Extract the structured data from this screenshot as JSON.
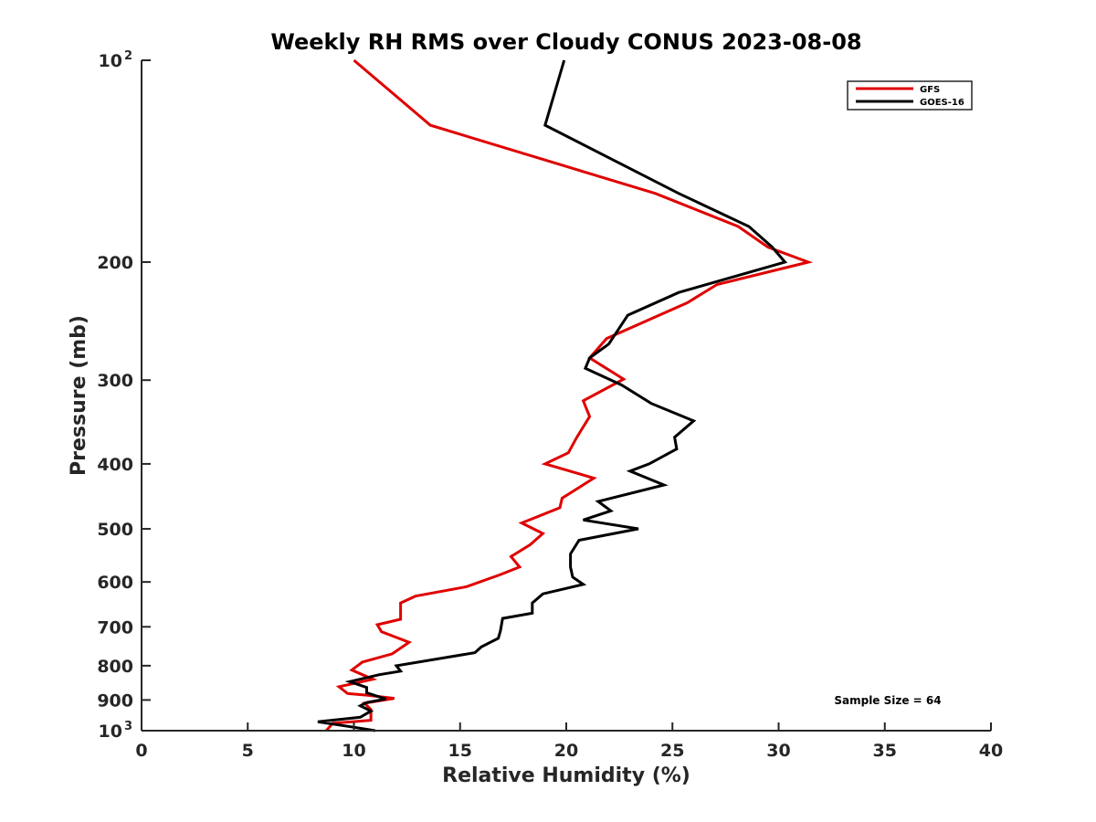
{
  "chart_data": {
    "type": "line",
    "title": "Weekly RH RMS over Cloudy CONUS 2023-08-08",
    "xlabel": "Relative Humidity (%)",
    "ylabel": "Pressure (mb)",
    "xlim": [
      0,
      40
    ],
    "ylim": [
      100,
      1000
    ],
    "y_scale": "log",
    "y_reversed": true,
    "x_ticks": [
      0,
      5,
      10,
      15,
      20,
      25,
      30,
      35,
      40
    ],
    "x_tick_labels": [
      "0",
      "5",
      "10",
      "15",
      "20",
      "25",
      "30",
      "35",
      "40"
    ],
    "y_ticks": [
      {
        "value": 100,
        "label": "10",
        "exp": "2"
      },
      {
        "value": 200,
        "label": "200",
        "exp": ""
      },
      {
        "value": 300,
        "label": "300",
        "exp": ""
      },
      {
        "value": 400,
        "label": "400",
        "exp": ""
      },
      {
        "value": 500,
        "label": "500",
        "exp": ""
      },
      {
        "value": 600,
        "label": "600",
        "exp": ""
      },
      {
        "value": 700,
        "label": "700",
        "exp": ""
      },
      {
        "value": 800,
        "label": "800",
        "exp": ""
      },
      {
        "value": 900,
        "label": "900",
        "exp": ""
      },
      {
        "value": 1000,
        "label": "10",
        "exp": "3"
      }
    ],
    "grid": false,
    "legend_position": "top-right",
    "annotation": "Sample Size = 64",
    "series": [
      {
        "name": "GFS",
        "color": "#e00000",
        "points": [
          [
            10.0,
            100
          ],
          [
            13.6,
            125
          ],
          [
            24.2,
            158
          ],
          [
            28.1,
            177
          ],
          [
            29.5,
            190
          ],
          [
            31.4,
            200
          ],
          [
            27.1,
            216
          ],
          [
            25.7,
            230
          ],
          [
            21.9,
            260
          ],
          [
            21.1,
            278
          ],
          [
            22.7,
            299
          ],
          [
            20.8,
            322
          ],
          [
            21.1,
            340
          ],
          [
            20.5,
            365
          ],
          [
            20.1,
            385
          ],
          [
            19.0,
            400
          ],
          [
            21.3,
            420
          ],
          [
            19.8,
            450
          ],
          [
            19.7,
            465
          ],
          [
            17.9,
            490
          ],
          [
            18.9,
            508
          ],
          [
            18.3,
            528
          ],
          [
            17.4,
            550
          ],
          [
            17.8,
            570
          ],
          [
            16.9,
            585
          ],
          [
            15.3,
            610
          ],
          [
            12.9,
            630
          ],
          [
            12.2,
            645
          ],
          [
            12.2,
            682
          ],
          [
            11.1,
            695
          ],
          [
            11.3,
            712
          ],
          [
            12.6,
            738
          ],
          [
            11.8,
            768
          ],
          [
            10.4,
            790
          ],
          [
            9.9,
            812
          ],
          [
            10.9,
            838
          ],
          [
            9.3,
            860
          ],
          [
            9.7,
            880
          ],
          [
            10.6,
            885
          ],
          [
            11.9,
            895
          ],
          [
            10.5,
            910
          ],
          [
            10.8,
            930
          ],
          [
            10.8,
            965
          ],
          [
            9.0,
            975
          ],
          [
            8.7,
            1000
          ]
        ]
      },
      {
        "name": "GOES-16",
        "color": "#000000",
        "points": [
          [
            19.9,
            100
          ],
          [
            19.0,
            125
          ],
          [
            25.3,
            158
          ],
          [
            28.6,
            177
          ],
          [
            29.7,
            190
          ],
          [
            30.3,
            200
          ],
          [
            25.3,
            222
          ],
          [
            22.9,
            240
          ],
          [
            22.0,
            265
          ],
          [
            21.1,
            278
          ],
          [
            20.9,
            288
          ],
          [
            22.6,
            305
          ],
          [
            24.0,
            325
          ],
          [
            26.0,
            345
          ],
          [
            25.1,
            365
          ],
          [
            25.2,
            380
          ],
          [
            23.9,
            400
          ],
          [
            23.0,
            410
          ],
          [
            24.6,
            430
          ],
          [
            21.5,
            455
          ],
          [
            22.1,
            470
          ],
          [
            20.8,
            485
          ],
          [
            23.4,
            500
          ],
          [
            20.6,
            520
          ],
          [
            20.2,
            545
          ],
          [
            20.2,
            570
          ],
          [
            20.3,
            590
          ],
          [
            20.8,
            605
          ],
          [
            18.9,
            625
          ],
          [
            18.4,
            645
          ],
          [
            18.4,
            668
          ],
          [
            17.0,
            680
          ],
          [
            16.9,
            710
          ],
          [
            16.8,
            728
          ],
          [
            16.0,
            750
          ],
          [
            15.7,
            765
          ],
          [
            12.0,
            800
          ],
          [
            12.2,
            815
          ],
          [
            11.2,
            825
          ],
          [
            9.8,
            845
          ],
          [
            10.6,
            862
          ],
          [
            10.6,
            878
          ],
          [
            11.5,
            897
          ],
          [
            10.6,
            908
          ],
          [
            10.3,
            918
          ],
          [
            10.8,
            935
          ],
          [
            10.3,
            955
          ],
          [
            8.3,
            970
          ],
          [
            9.7,
            985
          ],
          [
            11.0,
            1000
          ]
        ]
      }
    ]
  }
}
